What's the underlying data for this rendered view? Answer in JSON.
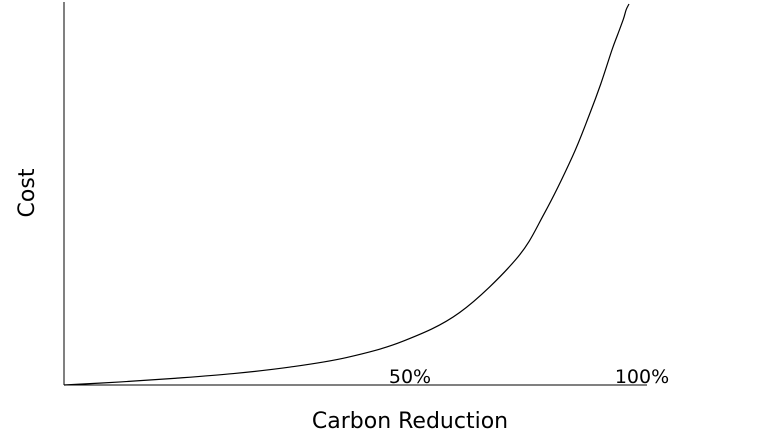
{
  "chart_data": {
    "type": "line",
    "title": "",
    "xlabel": "Carbon Reduction",
    "ylabel": "Cost",
    "x_ticks": [
      {
        "value": 50,
        "label": "50%"
      },
      {
        "value": 100,
        "label": "100%"
      }
    ],
    "xlim": [
      0,
      100
    ],
    "ylim": [
      0,
      100
    ],
    "grid": false,
    "legend": "none",
    "line_color": "#000000",
    "series": [
      {
        "x": [
          0,
          10,
          20,
          30,
          40,
          50,
          60,
          70,
          80,
          85,
          90,
          93,
          95,
          97,
          98,
          99,
          99.5,
          100
        ],
        "y": [
          0,
          0.8,
          1.8,
          3.0,
          4.7,
          7.2,
          11.5,
          19,
          33,
          45,
          60,
          71,
          79,
          88,
          92,
          96,
          98.5,
          100
        ]
      }
    ]
  }
}
